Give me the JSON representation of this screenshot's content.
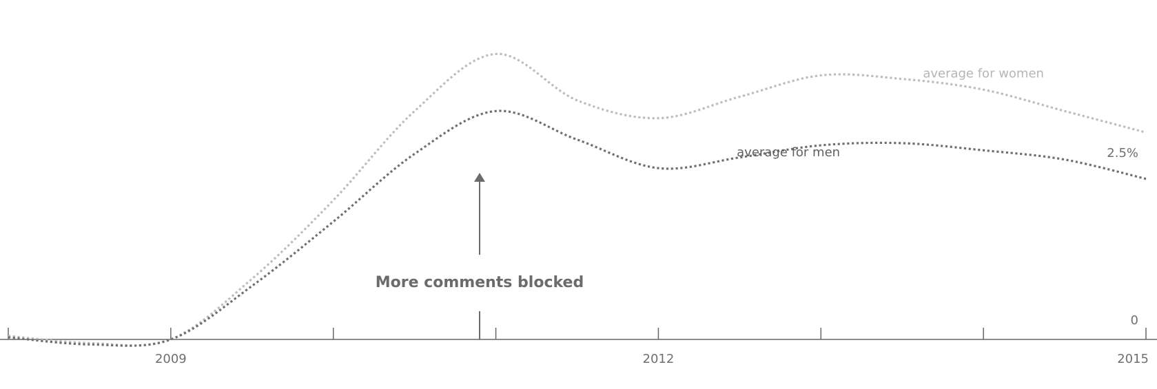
{
  "chart_data": {
    "type": "line",
    "xlim": [
      2008,
      2015
    ],
    "ylim": [
      0,
      4.1
    ],
    "x_ticks": [
      2008,
      2009,
      2010,
      2011,
      2012,
      2013,
      2014,
      2015
    ],
    "x_tick_labels": [
      {
        "x": 2009,
        "label": "2009"
      },
      {
        "x": 2012,
        "label": "2012"
      },
      {
        "x": 2015,
        "label": "2015"
      }
    ],
    "y_tick_labels": [
      {
        "y": 0,
        "label": "0"
      },
      {
        "y": 2.5,
        "label": "2.5%"
      }
    ],
    "grid": false,
    "series": [
      {
        "name": "average for women",
        "color": "#bdbdbd",
        "dash": "dotted",
        "x": [
          2008.0,
          2008.5,
          2009.0,
          2009.5,
          2010.0,
          2010.5,
          2011.0,
          2011.5,
          2012.0,
          2012.5,
          2013.0,
          2013.5,
          2014.0,
          2014.5,
          2015.0
        ],
        "y": [
          0.05,
          -0.05,
          0.0,
          0.85,
          1.95,
          3.2,
          4.0,
          3.35,
          3.1,
          3.4,
          3.7,
          3.65,
          3.5,
          3.2,
          2.9
        ]
      },
      {
        "name": "average for men",
        "color": "#6f6f6f",
        "dash": "dotted",
        "x": [
          2008.0,
          2008.5,
          2009.0,
          2009.5,
          2010.0,
          2010.5,
          2011.0,
          2011.5,
          2012.0,
          2012.5,
          2013.0,
          2013.5,
          2014.0,
          2014.5,
          2015.0
        ],
        "y": [
          0.03,
          -0.07,
          0.0,
          0.75,
          1.65,
          2.6,
          3.2,
          2.8,
          2.4,
          2.55,
          2.72,
          2.75,
          2.65,
          2.52,
          2.25
        ]
      }
    ],
    "annotations": [
      {
        "x": 2010.9,
        "text": "More comments blocked",
        "arrow": "up"
      }
    ]
  },
  "colors": {
    "axis": "#666666",
    "women": "#bdbdbd",
    "men": "#6f6f6f",
    "label_women": "#b5b5b5",
    "label_men": "#5f5f5f",
    "annotation": "#6b6b6b"
  }
}
